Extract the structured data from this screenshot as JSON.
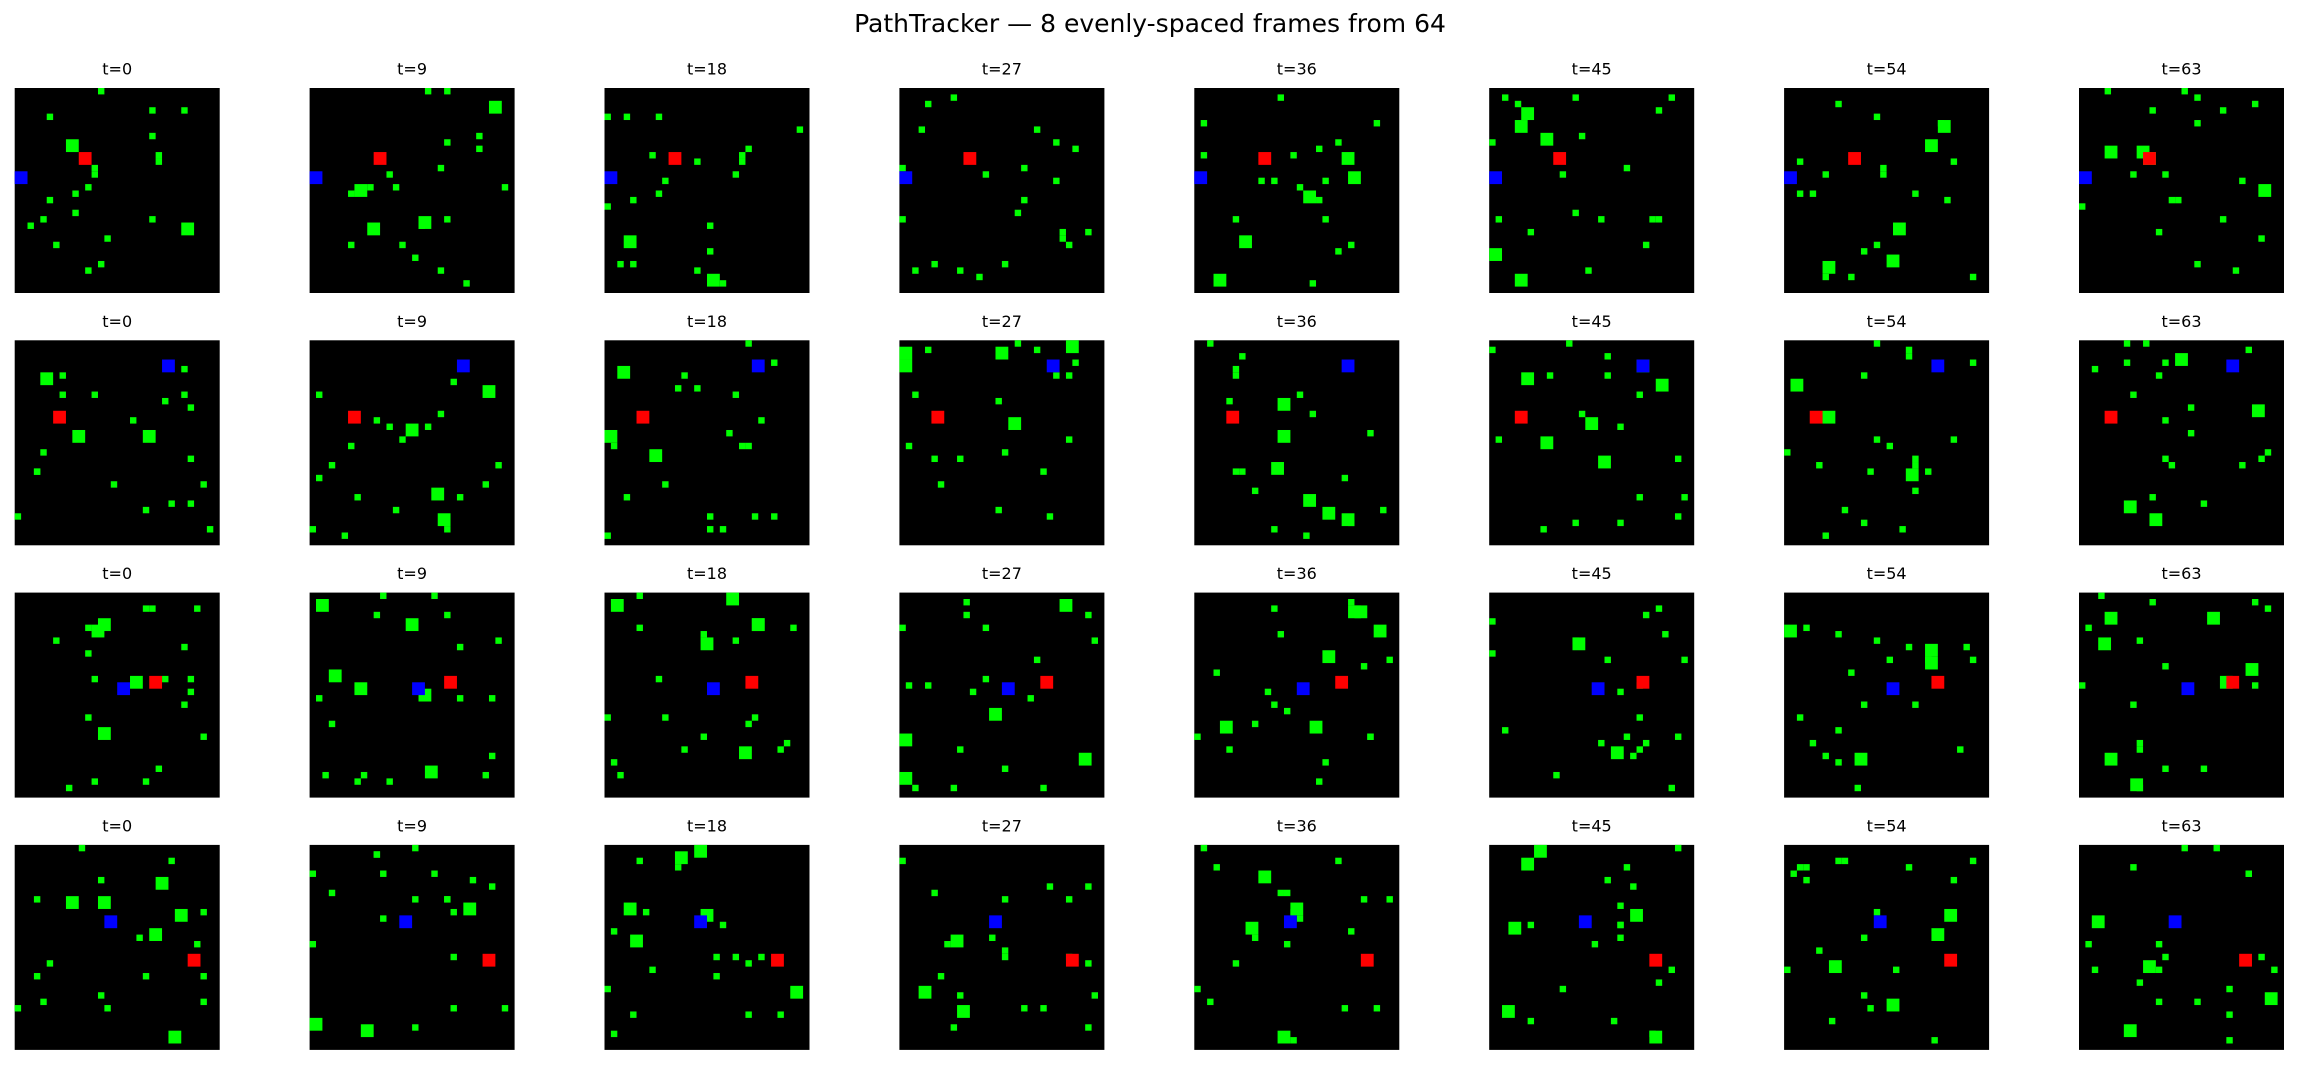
{
  "title": "PathTracker — 8 evenly-spaced frames from 64",
  "panels": {
    "rows": [
      [
        "t=0",
        "t=9",
        "t=18",
        "t=27",
        "t=36",
        "t=45",
        "t=54",
        "t=63"
      ],
      [
        "t=0",
        "t=9",
        "t=18",
        "t=27",
        "t=36",
        "t=45",
        "t=54",
        "t=63"
      ],
      [
        "t=0",
        "t=9",
        "t=18",
        "t=27",
        "t=36",
        "t=45",
        "t=54",
        "t=63"
      ],
      [
        "t=0",
        "t=9",
        "t=18",
        "t=27",
        "t=36",
        "t=45",
        "t=54",
        "t=63"
      ]
    ]
  }
}
